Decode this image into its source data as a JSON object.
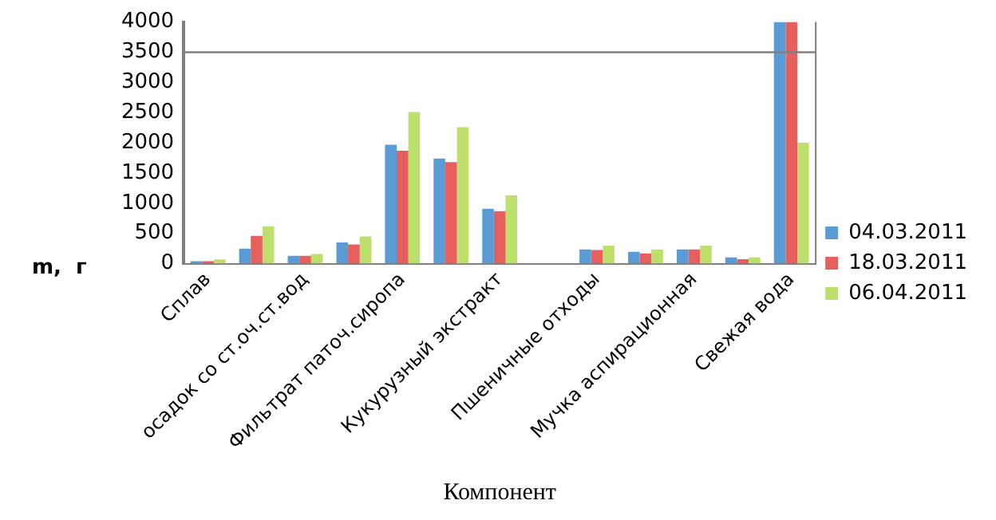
{
  "chart_data": {
    "type": "bar",
    "xlabel": "Компонент",
    "ylabel": "m,  г",
    "categories": [
      "Сплав",
      null,
      "осадок со ст.оч.ст.вод",
      null,
      "Фильтрат паточ.сиропа",
      null,
      "Кукурузный экстракт",
      null,
      "Пшеничные отходы",
      null,
      "Мучка аспирационная",
      null,
      "Свежая вода"
    ],
    "series": [
      {
        "name": "04.03.2011",
        "color": "#5b9bd5",
        "values": [
          40,
          250,
          130,
          350,
          1970,
          1740,
          910,
          null,
          235,
          195,
          235,
          105,
          4000
        ]
      },
      {
        "name": "18.03.2011",
        "color": "#e5605c",
        "values": [
          40,
          460,
          130,
          320,
          1870,
          1680,
          870,
          null,
          225,
          170,
          235,
          75,
          4000
        ]
      },
      {
        "name": "06.04.2011",
        "color": "#bde06c",
        "values": [
          70,
          620,
          160,
          450,
          2510,
          2260,
          1130,
          null,
          300,
          235,
          300,
          105,
          2000
        ]
      }
    ],
    "ylim": [
      0,
      4000
    ],
    "yticks": [
      0,
      500,
      1000,
      1500,
      2000,
      2500,
      3000,
      3500,
      4000
    ],
    "ref_lines": [
      {
        "axis": "y",
        "value": 3500,
        "color": "#7f7f7f"
      }
    ],
    "grid": false,
    "legend": "right"
  }
}
